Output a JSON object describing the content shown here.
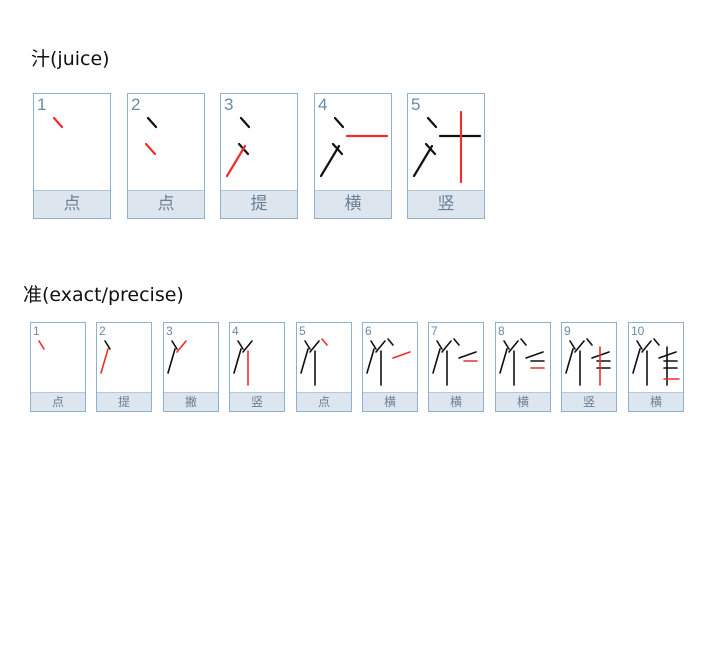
{
  "sections": [
    {
      "title": "汁(juice)",
      "cards": [
        {
          "num": "1",
          "name": "点"
        },
        {
          "num": "2",
          "name": "点"
        },
        {
          "num": "3",
          "name": "提"
        },
        {
          "num": "4",
          "name": "横"
        },
        {
          "num": "5",
          "name": "竖"
        }
      ]
    },
    {
      "title": "准(exact/precise)",
      "cards": [
        {
          "num": "1",
          "name": "点"
        },
        {
          "num": "2",
          "name": "提"
        },
        {
          "num": "3",
          "name": "撇"
        },
        {
          "num": "4",
          "name": "竖"
        },
        {
          "num": "5",
          "name": "点"
        },
        {
          "num": "6",
          "name": "横"
        },
        {
          "num": "7",
          "name": "横"
        },
        {
          "num": "8",
          "name": "横"
        },
        {
          "num": "9",
          "name": "竖"
        },
        {
          "num": "10",
          "name": "横"
        }
      ]
    }
  ],
  "colors": {
    "stroke_done": "#111111",
    "stroke_current": "#e8312f",
    "card_border": "#8fb0cf",
    "label_bg": "#dde6ee"
  }
}
